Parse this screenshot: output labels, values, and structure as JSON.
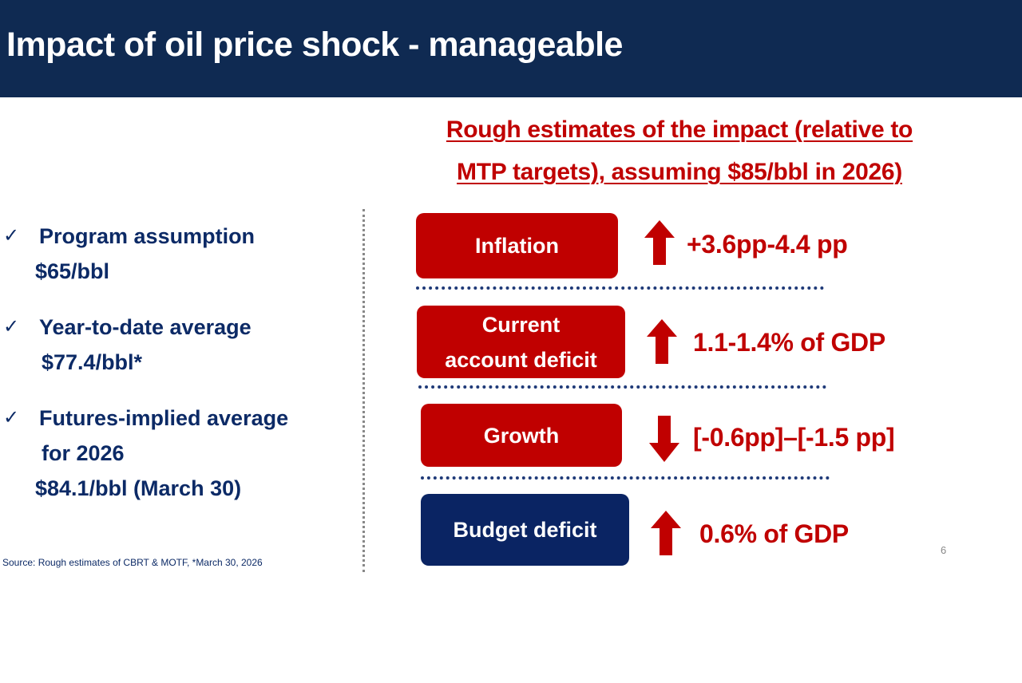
{
  "header": {
    "title": "Impact of oil price shock - manageable"
  },
  "subtitle": {
    "line1": "Rough estimates of the impact (relative to",
    "line2": "MTP targets), assuming $85/bbl in 2026)"
  },
  "bullets": [
    {
      "icon": "check-icon",
      "line1": "Program assumption",
      "line2": "$65/bbl"
    },
    {
      "icon": "check-icon",
      "line1": "Year-to-date average",
      "line2": "$77.4/bbl*"
    },
    {
      "icon": "check-icon",
      "line1": "Futures-implied average",
      "line2": "for 2026",
      "line3": "$84.1/bbl (March 30)"
    }
  ],
  "source": "Source: Rough estimates of CBRT & MOTF, *March 30, 2026",
  "impacts": [
    {
      "label": "Inflation",
      "direction": "up",
      "value": "+3.6pp-4.4 pp",
      "box_color": "#c00000"
    },
    {
      "label_line1": "Current",
      "label_line2": "account deficit",
      "direction": "up",
      "value": "1.1-1.4% of GDP",
      "box_color": "#c00000"
    },
    {
      "label": "Growth",
      "direction": "down",
      "value": "[-0.6pp]–[-1.5 pp]",
      "box_color": "#c00000"
    },
    {
      "label": "Budget deficit",
      "direction": "up",
      "value": "0.6% of GDP",
      "box_color": "#0a2463"
    }
  ],
  "colors": {
    "header": "#0f2a52",
    "accent_red": "#c00000",
    "navy_text": "#0c2a66"
  },
  "page_number": "6"
}
